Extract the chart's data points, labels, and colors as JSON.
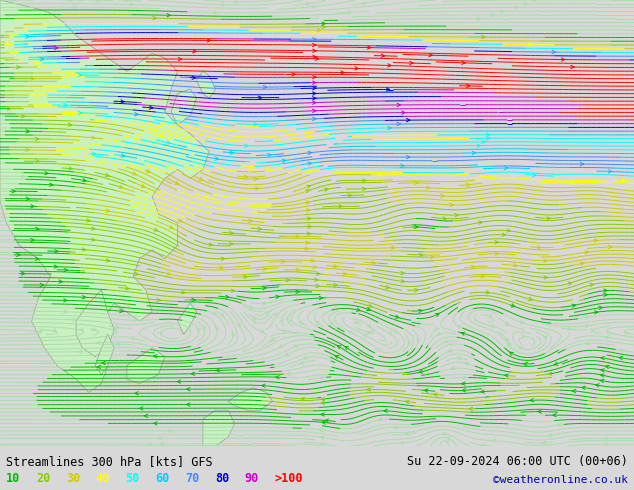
{
  "title_left": "Streamlines 300 hPa [kts] GFS",
  "title_right": "Su 22-09-2024 06:00 UTC (00+06)",
  "credit": "©weatheronline.co.uk",
  "legend_values": [
    "10",
    "20",
    "30",
    "40",
    "50",
    "60",
    "70",
    "80",
    "90",
    ">100"
  ],
  "legend_colors": [
    "#00bb00",
    "#88cc00",
    "#cccc00",
    "#ffff00",
    "#00ffff",
    "#00ccff",
    "#4488ff",
    "#0000dd",
    "#cc00cc",
    "#ff0000"
  ],
  "speed_colors_bounds": [
    0,
    10,
    20,
    30,
    40,
    50,
    60,
    70,
    80,
    90,
    100,
    300
  ],
  "speed_colors_list": [
    "#aaddaa",
    "#00bb00",
    "#88cc00",
    "#cccc00",
    "#ffff00",
    "#00ffff",
    "#00ccff",
    "#4488ff",
    "#0000dd",
    "#cc00cc",
    "#ff0000"
  ],
  "ocean_color": "#d8d8d8",
  "land_color": "#c8f0c0",
  "land_edge_color": "#999999",
  "fig_bg": "#d8d8d8",
  "bottom_bg": "#ffffff",
  "figsize": [
    6.34,
    4.9
  ],
  "dpi": 100
}
